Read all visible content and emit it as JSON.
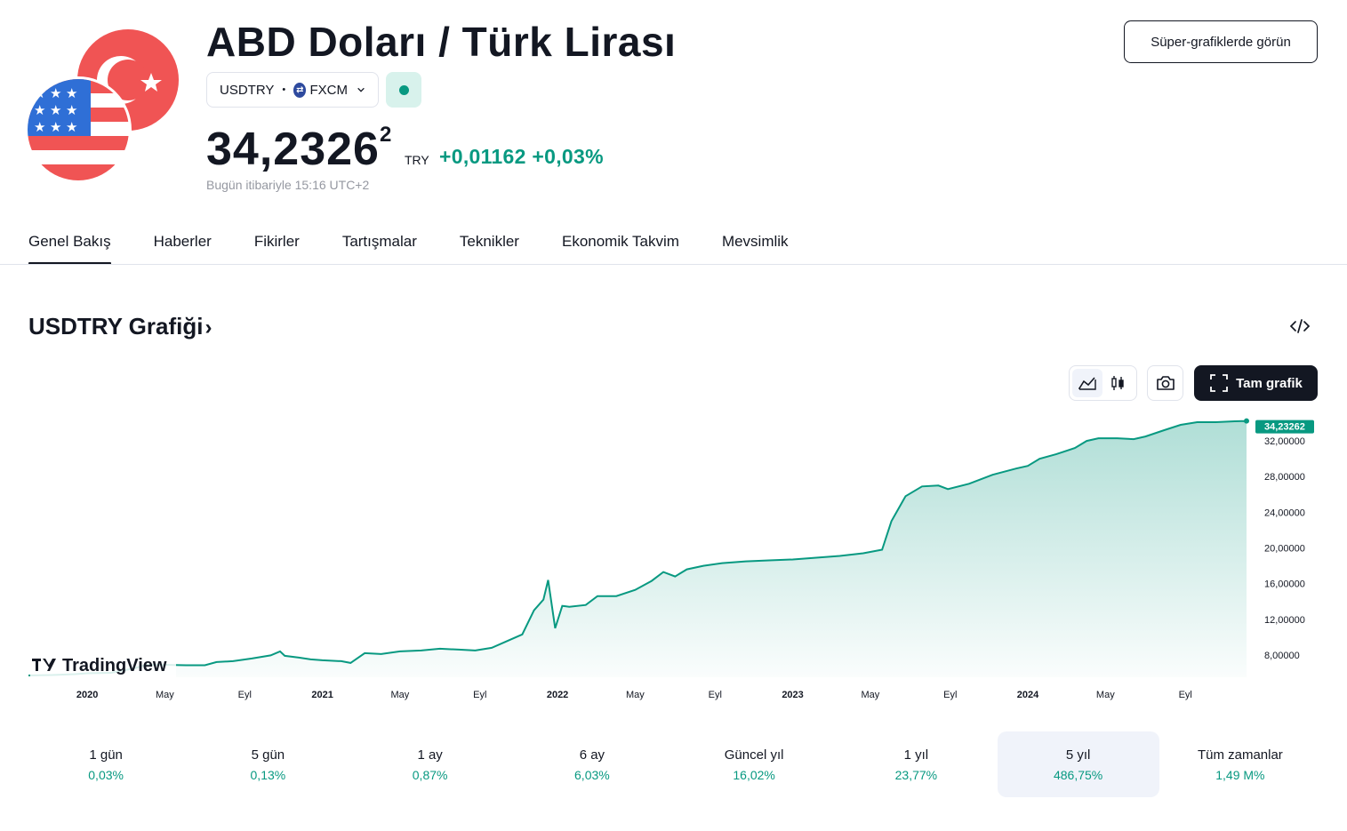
{
  "header": {
    "title": "ABD Doları / Türk Lirası",
    "symbol": "USDTRY",
    "exchange": "FXCM",
    "exchange_icon": "fxcm-logo-icon",
    "market_status": "open",
    "price_main": "34,2326",
    "price_super": "2",
    "currency": "TRY",
    "change_abs": "+0,01162",
    "change_pct": "+0,03%",
    "as_of": "Bugün itibariyle 15:16 UTC+2",
    "super_charts_button": "Süper-grafiklerde görün"
  },
  "tabs": [
    {
      "label": "Genel Bakış",
      "active": true
    },
    {
      "label": "Haberler",
      "active": false
    },
    {
      "label": "Fikirler",
      "active": false
    },
    {
      "label": "Tartışmalar",
      "active": false
    },
    {
      "label": "Teknikler",
      "active": false
    },
    {
      "label": "Ekonomik Takvim",
      "active": false
    },
    {
      "label": "Mevsimlik",
      "active": false
    }
  ],
  "section": {
    "title": "USDTRY Grafiği",
    "arrow": "›"
  },
  "toolbar": {
    "full_chart_label": "Tam grafik",
    "icons": [
      "area-chart-icon",
      "candles-icon",
      "camera-icon",
      "fullscreen-icon",
      "embed-code-icon"
    ]
  },
  "chart_data": {
    "type": "area",
    "watermark": "TradingView",
    "last_value_label": "34,23262",
    "y_ticks": [
      "32,00000",
      "28,00000",
      "24,00000",
      "20,00000",
      "16,00000",
      "12,00000",
      "8,00000"
    ],
    "y_tick_values": [
      32,
      28,
      24,
      20,
      16,
      12,
      8
    ],
    "x_ticks": [
      {
        "label": "2020",
        "t": 2020.0,
        "bold": true
      },
      {
        "label": "May",
        "t": 2020.33,
        "bold": false
      },
      {
        "label": "Eyl",
        "t": 2020.67,
        "bold": false
      },
      {
        "label": "2021",
        "t": 2021.0,
        "bold": true
      },
      {
        "label": "May",
        "t": 2021.33,
        "bold": false
      },
      {
        "label": "Eyl",
        "t": 2021.67,
        "bold": false
      },
      {
        "label": "2022",
        "t": 2022.0,
        "bold": true
      },
      {
        "label": "May",
        "t": 2022.33,
        "bold": false
      },
      {
        "label": "Eyl",
        "t": 2022.67,
        "bold": false
      },
      {
        "label": "2023",
        "t": 2023.0,
        "bold": true
      },
      {
        "label": "May",
        "t": 2023.33,
        "bold": false
      },
      {
        "label": "Eyl",
        "t": 2023.67,
        "bold": false
      },
      {
        "label": "2024",
        "t": 2024.0,
        "bold": true
      },
      {
        "label": "May",
        "t": 2024.33,
        "bold": false
      },
      {
        "label": "Eyl",
        "t": 2024.67,
        "bold": false
      }
    ],
    "x_range": [
      2019.75,
      2024.93
    ],
    "y_range": [
      5.5,
      34.6
    ],
    "series": [
      {
        "points": [
          [
            2019.75,
            5.7
          ],
          [
            2019.85,
            5.75
          ],
          [
            2019.95,
            5.85
          ],
          [
            2020.0,
            5.95
          ],
          [
            2020.1,
            6.0
          ],
          [
            2020.2,
            6.5
          ],
          [
            2020.25,
            6.9
          ],
          [
            2020.33,
            6.9
          ],
          [
            2020.42,
            6.85
          ],
          [
            2020.5,
            6.85
          ],
          [
            2020.55,
            7.2
          ],
          [
            2020.62,
            7.3
          ],
          [
            2020.7,
            7.6
          ],
          [
            2020.78,
            7.95
          ],
          [
            2020.82,
            8.4
          ],
          [
            2020.84,
            7.9
          ],
          [
            2020.9,
            7.7
          ],
          [
            2020.95,
            7.5
          ],
          [
            2021.0,
            7.4
          ],
          [
            2021.08,
            7.3
          ],
          [
            2021.12,
            7.1
          ],
          [
            2021.18,
            8.2
          ],
          [
            2021.25,
            8.1
          ],
          [
            2021.33,
            8.4
          ],
          [
            2021.42,
            8.5
          ],
          [
            2021.5,
            8.7
          ],
          [
            2021.58,
            8.6
          ],
          [
            2021.65,
            8.5
          ],
          [
            2021.72,
            8.8
          ],
          [
            2021.78,
            9.5
          ],
          [
            2021.85,
            10.3
          ],
          [
            2021.9,
            13.0
          ],
          [
            2021.94,
            14.2
          ],
          [
            2021.96,
            16.4
          ],
          [
            2021.99,
            11.0
          ],
          [
            2022.02,
            13.5
          ],
          [
            2022.05,
            13.4
          ],
          [
            2022.12,
            13.6
          ],
          [
            2022.17,
            14.6
          ],
          [
            2022.25,
            14.6
          ],
          [
            2022.33,
            15.3
          ],
          [
            2022.4,
            16.3
          ],
          [
            2022.45,
            17.3
          ],
          [
            2022.5,
            16.8
          ],
          [
            2022.55,
            17.6
          ],
          [
            2022.62,
            18.0
          ],
          [
            2022.7,
            18.3
          ],
          [
            2022.8,
            18.5
          ],
          [
            2022.9,
            18.6
          ],
          [
            2023.0,
            18.7
          ],
          [
            2023.1,
            18.9
          ],
          [
            2023.2,
            19.1
          ],
          [
            2023.3,
            19.4
          ],
          [
            2023.38,
            19.8
          ],
          [
            2023.42,
            23.0
          ],
          [
            2023.48,
            25.8
          ],
          [
            2023.55,
            26.9
          ],
          [
            2023.62,
            27.0
          ],
          [
            2023.66,
            26.6
          ],
          [
            2023.75,
            27.2
          ],
          [
            2023.85,
            28.2
          ],
          [
            2023.95,
            28.9
          ],
          [
            2024.0,
            29.2
          ],
          [
            2024.05,
            30.0
          ],
          [
            2024.12,
            30.5
          ],
          [
            2024.2,
            31.2
          ],
          [
            2024.25,
            32.0
          ],
          [
            2024.3,
            32.3
          ],
          [
            2024.38,
            32.3
          ],
          [
            2024.45,
            32.2
          ],
          [
            2024.5,
            32.5
          ],
          [
            2024.58,
            33.2
          ],
          [
            2024.65,
            33.8
          ],
          [
            2024.72,
            34.1
          ],
          [
            2024.8,
            34.1
          ],
          [
            2024.88,
            34.2
          ],
          [
            2024.93,
            34.23262
          ]
        ]
      }
    ],
    "colors": {
      "line": "#089981",
      "fill": "#089981",
      "label_bg": "#089981"
    }
  },
  "periods": [
    {
      "label": "1 gün",
      "value": "0,03%",
      "active": false
    },
    {
      "label": "5 gün",
      "value": "0,13%",
      "active": false
    },
    {
      "label": "1 ay",
      "value": "0,87%",
      "active": false
    },
    {
      "label": "6 ay",
      "value": "6,03%",
      "active": false
    },
    {
      "label": "Güncel yıl",
      "value": "16,02%",
      "active": false
    },
    {
      "label": "1 yıl",
      "value": "23,77%",
      "active": false
    },
    {
      "label": "5 yıl",
      "value": "486,75%",
      "active": true
    },
    {
      "label": "Tüm zamanlar",
      "value": "1,49 M%",
      "active": false
    }
  ],
  "colors": {
    "accent": "#089981",
    "text": "#131722",
    "muted": "#9598a1",
    "border": "#e0e3eb"
  }
}
